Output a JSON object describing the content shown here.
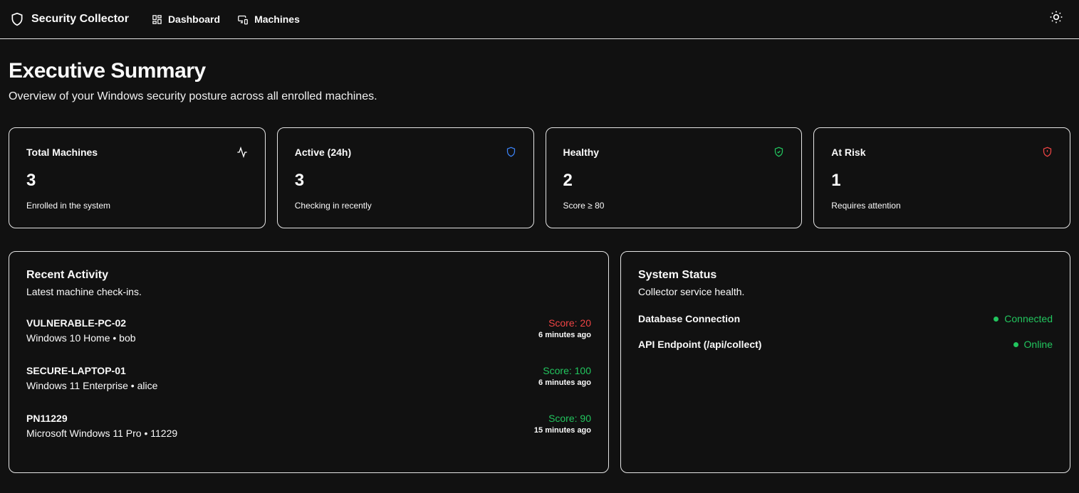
{
  "nav": {
    "brand": "Security Collector",
    "links": [
      "Dashboard",
      "Machines"
    ]
  },
  "page": {
    "title": "Executive Summary",
    "subtitle": "Overview of your Windows security posture across all enrolled machines."
  },
  "cards": [
    {
      "title": "Total Machines",
      "value": "3",
      "desc": "Enrolled in the system",
      "icon": "activity-icon",
      "color": "#ffffff"
    },
    {
      "title": "Active (24h)",
      "value": "3",
      "desc": "Checking in recently",
      "icon": "shield-icon",
      "color": "#3b82f6"
    },
    {
      "title": "Healthy",
      "value": "2",
      "desc": "Score ≥ 80",
      "icon": "shield-check-icon",
      "color": "#22c55e"
    },
    {
      "title": "At Risk",
      "value": "1",
      "desc": "Requires attention",
      "icon": "shield-alert-icon",
      "color": "#ef4444"
    }
  ],
  "activity": {
    "title": "Recent Activity",
    "subtitle": "Latest machine check-ins.",
    "items": [
      {
        "name": "VULNERABLE-PC-02",
        "os": "Windows 10 Home • bob",
        "score": "Score: 20",
        "time": "6 minutes ago",
        "color": "#ef4444"
      },
      {
        "name": "SECURE-LAPTOP-01",
        "os": "Windows 11 Enterprise • alice",
        "score": "Score: 100",
        "time": "6 minutes ago",
        "color": "#22c55e"
      },
      {
        "name": "PN11229",
        "os": "Microsoft Windows 11 Pro • 11229",
        "score": "Score: 90",
        "time": "15 minutes ago",
        "color": "#22c55e"
      }
    ]
  },
  "status": {
    "title": "System Status",
    "subtitle": "Collector service health.",
    "items": [
      {
        "label": "Database Connection",
        "value": "Connected"
      },
      {
        "label": "API Endpoint (/api/collect)",
        "value": "Online"
      }
    ]
  }
}
